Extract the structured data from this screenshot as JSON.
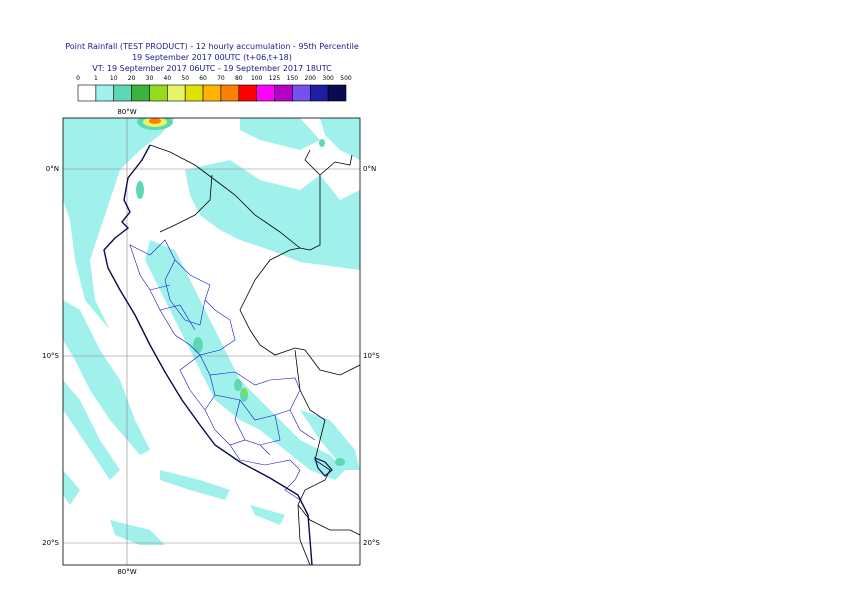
{
  "header": {
    "title": "Point Rainfall (TEST PRODUCT) - 12 hourly accumulation - 95th Percentile",
    "subtitle": "19 September 2017 00UTC (t+06,t+18)",
    "valid_time": "VT: 19 September 2017 06UTC - 19 September 2017 18UTC"
  },
  "legend": {
    "labels": [
      "0",
      "1",
      "10",
      "20",
      "30",
      "40",
      "50",
      "60",
      "70",
      "80",
      "100",
      "125",
      "150",
      "200",
      "300",
      "500"
    ],
    "colors": [
      "#ffffff",
      "#a0f0ec",
      "#5cd8b4",
      "#3cb43c",
      "#96dc1e",
      "#e6f564",
      "#e1e100",
      "#ffb400",
      "#ff7f00",
      "#ff0000",
      "#ff00ff",
      "#b400c8",
      "#7850f0",
      "#1e1ea0",
      "#0a0a50"
    ]
  },
  "map": {
    "longitude_labels": [
      "80°W"
    ],
    "latitude_labels": [
      "0°N",
      "10°S",
      "20°S"
    ]
  }
}
